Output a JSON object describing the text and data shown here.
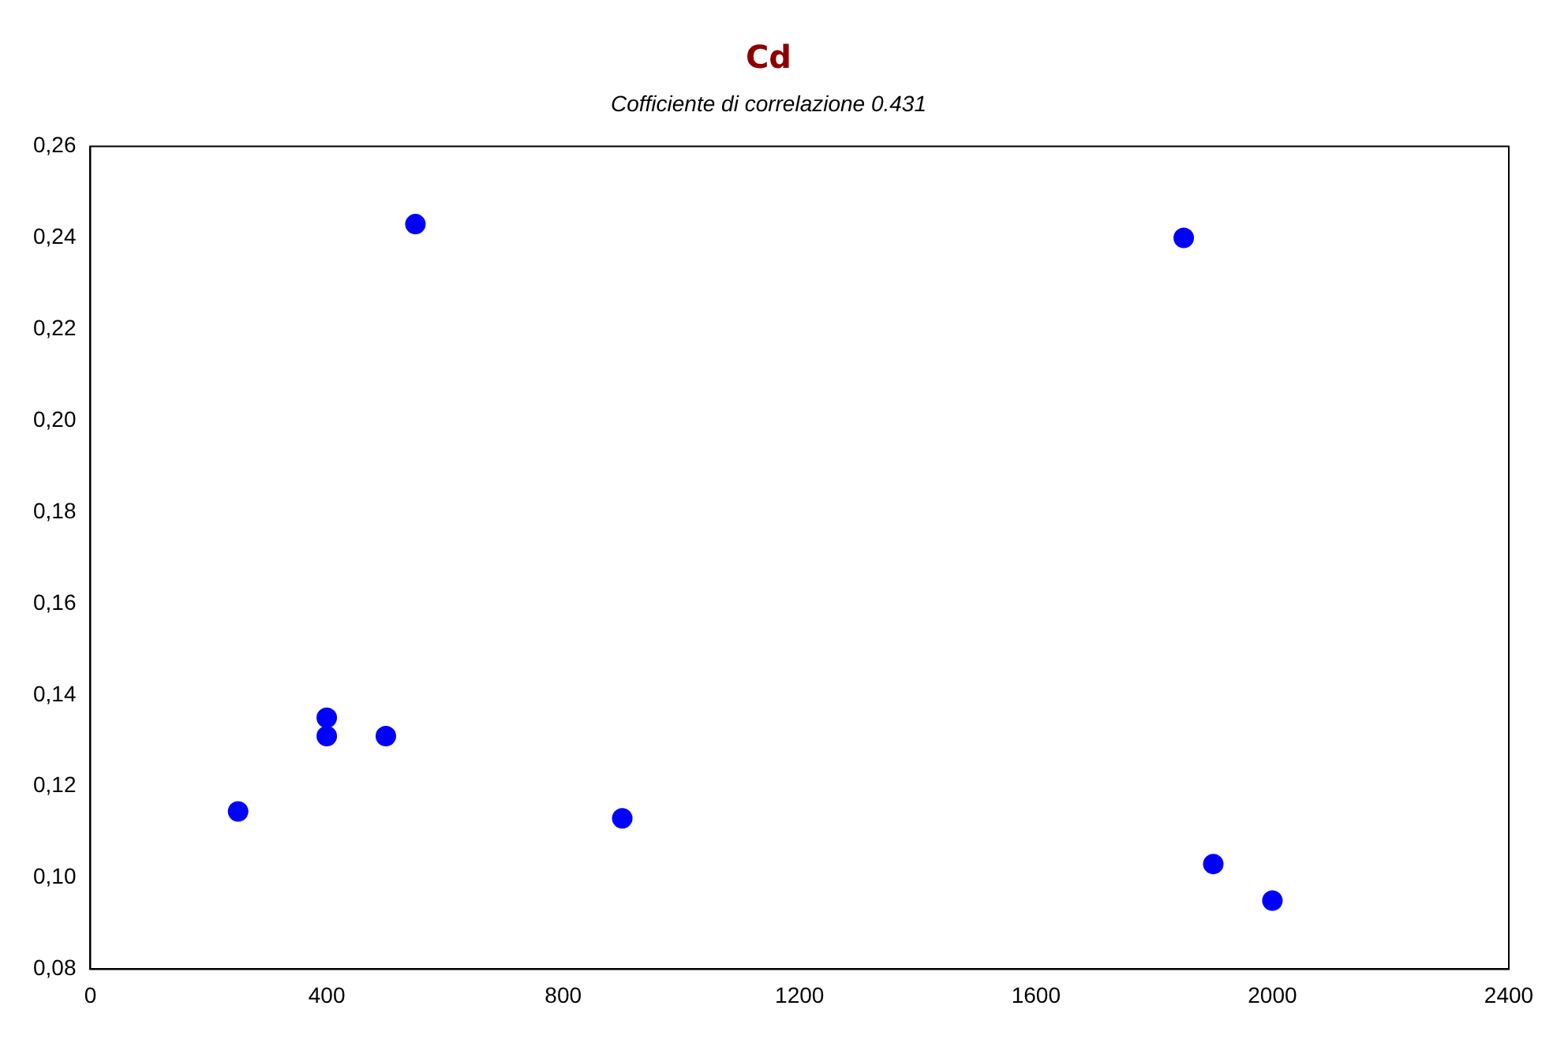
{
  "chart_data": {
    "type": "scatter",
    "title": "Cd",
    "subtitle": "Cofficiente di correlazione 0.431",
    "x": [
      250,
      400,
      400,
      500,
      550,
      900,
      1850,
      1900,
      2000
    ],
    "series": [
      {
        "color": "#0000ff",
        "values": [
          0.1145,
          0.135,
          0.131,
          0.131,
          0.243,
          0.113,
          0.24,
          0.103,
          0.095
        ]
      }
    ],
    "xlim": [
      0,
      2400
    ],
    "xticks": [
      0,
      400,
      800,
      1200,
      1600,
      2000,
      2400
    ],
    "ylim": [
      0.08,
      0.26
    ],
    "yticks": [
      {
        "value": 0.08,
        "label": "0,08"
      },
      {
        "value": 0.1,
        "label": "0,10"
      },
      {
        "value": 0.12,
        "label": "0,12"
      },
      {
        "value": 0.14,
        "label": "0,14"
      },
      {
        "value": 0.16,
        "label": "0,16"
      },
      {
        "value": 0.18,
        "label": "0,18"
      },
      {
        "value": 0.2,
        "label": "0,20"
      },
      {
        "value": 0.22,
        "label": "0,22"
      },
      {
        "value": 0.24,
        "label": "0,24"
      },
      {
        "value": 0.26,
        "label": "0,26"
      }
    ],
    "grid": false,
    "legend": false,
    "marker": "circle"
  }
}
